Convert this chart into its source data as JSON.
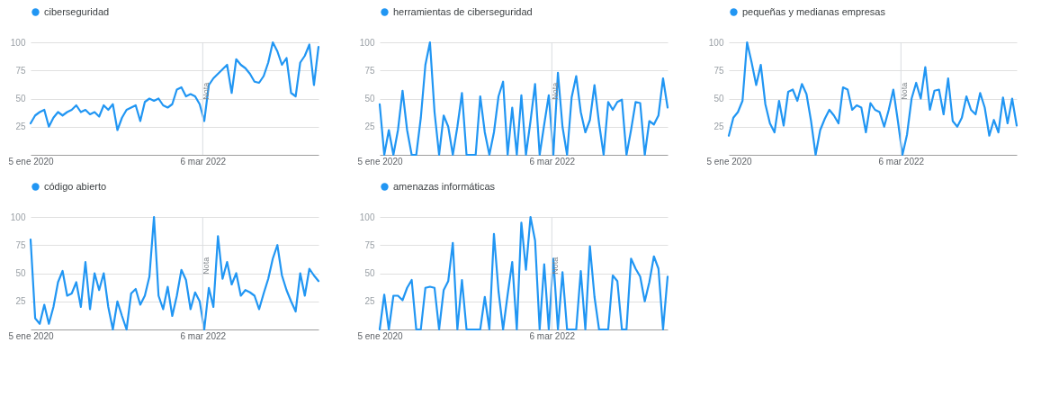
{
  "chart_data": [
    {
      "type": "line",
      "grid": "y",
      "legend": "top left",
      "xlim": [
        "2020-01-05",
        "2023-08-20"
      ],
      "ylim": [
        0,
        100
      ],
      "yticks": [
        25,
        50,
        75,
        100
      ],
      "xticks": [
        {
          "value": "2020-01-05",
          "label": "5 ene 2020"
        },
        {
          "value": "2022-03-06",
          "label": "6 mar 2022"
        }
      ],
      "ref_lines": [
        {
          "axis": "x",
          "value": "2022-03-06",
          "label": "Nota",
          "color": "#dadce0"
        }
      ],
      "x": [
        "2020-01-05",
        "2020-01-26",
        "2020-02-16",
        "2020-03-08",
        "2020-03-29",
        "2020-04-19",
        "2020-05-10",
        "2020-05-31",
        "2020-06-21",
        "2020-07-12",
        "2020-08-02",
        "2020-08-23",
        "2020-09-13",
        "2020-10-04",
        "2020-10-25",
        "2020-11-15",
        "2020-12-06",
        "2020-12-27",
        "2021-01-17",
        "2021-02-07",
        "2021-02-28",
        "2021-03-21",
        "2021-04-11",
        "2021-05-02",
        "2021-05-23",
        "2021-06-13",
        "2021-07-04",
        "2021-07-25",
        "2021-08-15",
        "2021-09-05",
        "2021-09-26",
        "2021-10-17",
        "2021-11-07",
        "2021-11-28",
        "2021-12-19",
        "2022-01-09",
        "2022-01-30",
        "2022-02-20",
        "2022-03-13",
        "2022-04-03",
        "2022-04-24",
        "2022-05-15",
        "2022-06-05",
        "2022-06-26",
        "2022-07-17",
        "2022-08-07",
        "2022-08-28",
        "2022-09-18",
        "2022-10-09",
        "2022-10-30",
        "2022-11-20",
        "2022-12-11",
        "2023-01-01",
        "2023-01-22",
        "2023-02-12",
        "2023-03-05",
        "2023-03-26",
        "2023-04-16",
        "2023-05-07",
        "2023-05-28",
        "2023-06-18",
        "2023-07-09",
        "2023-07-30",
        "2023-08-20"
      ],
      "series": [
        {
          "name": "ciberseguridad",
          "color": "#2196f3",
          "values": [
            28,
            35,
            38,
            40,
            25,
            33,
            38,
            35,
            38,
            40,
            44,
            38,
            40,
            36,
            38,
            34,
            44,
            40,
            45,
            22,
            33,
            40,
            42,
            44,
            30,
            47,
            50,
            48,
            50,
            44,
            42,
            45,
            58,
            60,
            52,
            54,
            52,
            45,
            30,
            62,
            68,
            72,
            76,
            80,
            55,
            85,
            80,
            77,
            72,
            65,
            64,
            70,
            82,
            100,
            92,
            80,
            86,
            55,
            52,
            82,
            88,
            98,
            62,
            96
          ]
        }
      ]
    },
    {
      "type": "line",
      "grid": "y",
      "legend": "top left",
      "xlim": [
        "2020-01-05",
        "2023-08-20"
      ],
      "ylim": [
        0,
        100
      ],
      "yticks": [
        25,
        50,
        75,
        100
      ],
      "xticks": [
        {
          "value": "2020-01-05",
          "label": "5 ene 2020"
        },
        {
          "value": "2022-03-06",
          "label": "6 mar 2022"
        }
      ],
      "ref_lines": [
        {
          "axis": "x",
          "value": "2022-03-06",
          "label": "Nota",
          "color": "#dadce0"
        }
      ],
      "x": [
        "2020-01-05",
        "2020-01-26",
        "2020-02-16",
        "2020-03-08",
        "2020-03-29",
        "2020-04-19",
        "2020-05-10",
        "2020-05-31",
        "2020-06-21",
        "2020-07-12",
        "2020-08-02",
        "2020-08-23",
        "2020-09-13",
        "2020-10-04",
        "2020-10-25",
        "2020-11-15",
        "2020-12-06",
        "2020-12-27",
        "2021-01-17",
        "2021-02-07",
        "2021-02-28",
        "2021-03-21",
        "2021-04-11",
        "2021-05-02",
        "2021-05-23",
        "2021-06-13",
        "2021-07-04",
        "2021-07-25",
        "2021-08-15",
        "2021-09-05",
        "2021-09-26",
        "2021-10-17",
        "2021-11-07",
        "2021-11-28",
        "2021-12-19",
        "2022-01-09",
        "2022-01-30",
        "2022-02-20",
        "2022-03-13",
        "2022-04-03",
        "2022-04-24",
        "2022-05-15",
        "2022-06-05",
        "2022-06-26",
        "2022-07-17",
        "2022-08-07",
        "2022-08-28",
        "2022-09-18",
        "2022-10-09",
        "2022-10-30",
        "2022-11-20",
        "2022-12-11",
        "2023-01-01",
        "2023-01-22",
        "2023-02-12",
        "2023-03-05",
        "2023-03-26",
        "2023-04-16",
        "2023-05-07",
        "2023-05-28",
        "2023-06-18",
        "2023-07-09",
        "2023-07-30",
        "2023-08-20"
      ],
      "series": [
        {
          "name": "herramientas de ciberseguridad",
          "color": "#2196f3",
          "values": [
            45,
            0,
            22,
            0,
            22,
            57,
            22,
            0,
            0,
            33,
            80,
            100,
            38,
            0,
            35,
            25,
            0,
            25,
            55,
            0,
            0,
            0,
            52,
            20,
            0,
            20,
            52,
            65,
            0,
            42,
            0,
            53,
            0,
            30,
            63,
            0,
            27,
            53,
            0,
            73,
            25,
            0,
            51,
            70,
            38,
            20,
            31,
            62,
            28,
            0,
            47,
            40,
            47,
            49,
            0,
            22,
            47,
            46,
            0,
            30,
            27,
            35,
            68,
            42
          ]
        }
      ]
    },
    {
      "type": "line",
      "grid": "y",
      "legend": "top left",
      "xlim": [
        "2020-01-05",
        "2023-08-20"
      ],
      "ylim": [
        0,
        100
      ],
      "yticks": [
        25,
        50,
        75,
        100
      ],
      "xticks": [
        {
          "value": "2020-01-05",
          "label": "5 ene 2020"
        },
        {
          "value": "2022-03-06",
          "label": "6 mar 2022"
        }
      ],
      "ref_lines": [
        {
          "axis": "x",
          "value": "2022-03-06",
          "label": "Nota",
          "color": "#dadce0"
        }
      ],
      "x": [
        "2020-01-05",
        "2020-01-26",
        "2020-02-16",
        "2020-03-08",
        "2020-03-29",
        "2020-04-19",
        "2020-05-10",
        "2020-05-31",
        "2020-06-21",
        "2020-07-12",
        "2020-08-02",
        "2020-08-23",
        "2020-09-13",
        "2020-10-04",
        "2020-10-25",
        "2020-11-15",
        "2020-12-06",
        "2020-12-27",
        "2021-01-17",
        "2021-02-07",
        "2021-02-28",
        "2021-03-21",
        "2021-04-11",
        "2021-05-02",
        "2021-05-23",
        "2021-06-13",
        "2021-07-04",
        "2021-07-25",
        "2021-08-15",
        "2021-09-05",
        "2021-09-26",
        "2021-10-17",
        "2021-11-07",
        "2021-11-28",
        "2021-12-19",
        "2022-01-09",
        "2022-01-30",
        "2022-02-20",
        "2022-03-13",
        "2022-04-03",
        "2022-04-24",
        "2022-05-15",
        "2022-06-05",
        "2022-06-26",
        "2022-07-17",
        "2022-08-07",
        "2022-08-28",
        "2022-09-18",
        "2022-10-09",
        "2022-10-30",
        "2022-11-20",
        "2022-12-11",
        "2023-01-01",
        "2023-01-22",
        "2023-02-12",
        "2023-03-05",
        "2023-03-26",
        "2023-04-16",
        "2023-05-07",
        "2023-05-28",
        "2023-06-18",
        "2023-07-09",
        "2023-07-30",
        "2023-08-20"
      ],
      "series": [
        {
          "name": "pequeñas y medianas empresas",
          "color": "#2196f3",
          "values": [
            17,
            33,
            38,
            48,
            100,
            82,
            62,
            80,
            45,
            28,
            20,
            48,
            26,
            56,
            58,
            48,
            63,
            54,
            30,
            0,
            22,
            32,
            40,
            35,
            28,
            60,
            58,
            40,
            44,
            42,
            20,
            46,
            40,
            38,
            25,
            40,
            58,
            30,
            0,
            18,
            50,
            64,
            50,
            78,
            40,
            57,
            58,
            36,
            68,
            30,
            25,
            33,
            52,
            40,
            36,
            55,
            42,
            17,
            31,
            20,
            51,
            28,
            50,
            26
          ]
        }
      ]
    },
    {
      "type": "line",
      "grid": "y",
      "legend": "top left",
      "xlim": [
        "2020-01-05",
        "2023-08-20"
      ],
      "ylim": [
        0,
        100
      ],
      "yticks": [
        25,
        50,
        75,
        100
      ],
      "xticks": [
        {
          "value": "2020-01-05",
          "label": "5 ene 2020"
        },
        {
          "value": "2022-03-06",
          "label": "6 mar 2022"
        }
      ],
      "ref_lines": [
        {
          "axis": "x",
          "value": "2022-03-06",
          "label": "Nota",
          "color": "#dadce0"
        }
      ],
      "x": [
        "2020-01-05",
        "2020-01-26",
        "2020-02-16",
        "2020-03-08",
        "2020-03-29",
        "2020-04-19",
        "2020-05-10",
        "2020-05-31",
        "2020-06-21",
        "2020-07-12",
        "2020-08-02",
        "2020-08-23",
        "2020-09-13",
        "2020-10-04",
        "2020-10-25",
        "2020-11-15",
        "2020-12-06",
        "2020-12-27",
        "2021-01-17",
        "2021-02-07",
        "2021-02-28",
        "2021-03-21",
        "2021-04-11",
        "2021-05-02",
        "2021-05-23",
        "2021-06-13",
        "2021-07-04",
        "2021-07-25",
        "2021-08-15",
        "2021-09-05",
        "2021-09-26",
        "2021-10-17",
        "2021-11-07",
        "2021-11-28",
        "2021-12-19",
        "2022-01-09",
        "2022-01-30",
        "2022-02-20",
        "2022-03-13",
        "2022-04-03",
        "2022-04-24",
        "2022-05-15",
        "2022-06-05",
        "2022-06-26",
        "2022-07-17",
        "2022-08-07",
        "2022-08-28",
        "2022-09-18",
        "2022-10-09",
        "2022-10-30",
        "2022-11-20",
        "2022-12-11",
        "2023-01-01",
        "2023-01-22",
        "2023-02-12",
        "2023-03-05",
        "2023-03-26",
        "2023-04-16",
        "2023-05-07",
        "2023-05-28",
        "2023-06-18",
        "2023-07-09",
        "2023-07-30",
        "2023-08-20"
      ],
      "series": [
        {
          "name": "código abierto",
          "color": "#2196f3",
          "values": [
            80,
            10,
            5,
            22,
            5,
            20,
            42,
            52,
            30,
            32,
            42,
            20,
            60,
            18,
            50,
            35,
            50,
            20,
            0,
            25,
            12,
            0,
            32,
            36,
            22,
            30,
            47,
            100,
            30,
            18,
            38,
            12,
            30,
            53,
            44,
            18,
            33,
            25,
            0,
            37,
            20,
            83,
            45,
            60,
            40,
            50,
            30,
            35,
            33,
            30,
            18,
            32,
            45,
            63,
            75,
            48,
            35,
            25,
            16,
            50,
            30,
            54,
            48,
            43
          ]
        }
      ]
    },
    {
      "type": "line",
      "grid": "y",
      "legend": "top left",
      "xlim": [
        "2020-01-05",
        "2023-08-20"
      ],
      "ylim": [
        0,
        100
      ],
      "yticks": [
        25,
        50,
        75,
        100
      ],
      "xticks": [
        {
          "value": "2020-01-05",
          "label": "5 ene 2020"
        },
        {
          "value": "2022-03-06",
          "label": "6 mar 2022"
        }
      ],
      "ref_lines": [
        {
          "axis": "x",
          "value": "2022-03-06",
          "label": "Nota",
          "color": "#dadce0"
        }
      ],
      "x": [
        "2020-01-05",
        "2020-01-26",
        "2020-02-16",
        "2020-03-08",
        "2020-03-29",
        "2020-04-19",
        "2020-05-10",
        "2020-05-31",
        "2020-06-21",
        "2020-07-12",
        "2020-08-02",
        "2020-08-23",
        "2020-09-13",
        "2020-10-04",
        "2020-10-25",
        "2020-11-15",
        "2020-12-06",
        "2020-12-27",
        "2021-01-17",
        "2021-02-07",
        "2021-02-28",
        "2021-03-21",
        "2021-04-11",
        "2021-05-02",
        "2021-05-23",
        "2021-06-13",
        "2021-07-04",
        "2021-07-25",
        "2021-08-15",
        "2021-09-05",
        "2021-09-26",
        "2021-10-17",
        "2021-11-07",
        "2021-11-28",
        "2021-12-19",
        "2022-01-09",
        "2022-01-30",
        "2022-02-20",
        "2022-03-13",
        "2022-04-03",
        "2022-04-24",
        "2022-05-15",
        "2022-06-05",
        "2022-06-26",
        "2022-07-17",
        "2022-08-07",
        "2022-08-28",
        "2022-09-18",
        "2022-10-09",
        "2022-10-30",
        "2022-11-20",
        "2022-12-11",
        "2023-01-01",
        "2023-01-22",
        "2023-02-12",
        "2023-03-05",
        "2023-03-26",
        "2023-04-16",
        "2023-05-07",
        "2023-05-28",
        "2023-06-18",
        "2023-07-09",
        "2023-07-30",
        "2023-08-20"
      ],
      "series": [
        {
          "name": "amenazas informáticas",
          "color": "#2196f3",
          "values": [
            0,
            31,
            0,
            30,
            30,
            26,
            37,
            44,
            0,
            0,
            37,
            38,
            37,
            0,
            35,
            43,
            77,
            0,
            44,
            0,
            0,
            0,
            0,
            29,
            0,
            85,
            34,
            0,
            31,
            60,
            0,
            95,
            53,
            100,
            79,
            0,
            58,
            0,
            63,
            0,
            51,
            0,
            0,
            0,
            52,
            0,
            74,
            29,
            0,
            0,
            0,
            48,
            43,
            0,
            0,
            63,
            54,
            47,
            25,
            42,
            65,
            54,
            0,
            47
          ]
        }
      ]
    }
  ]
}
